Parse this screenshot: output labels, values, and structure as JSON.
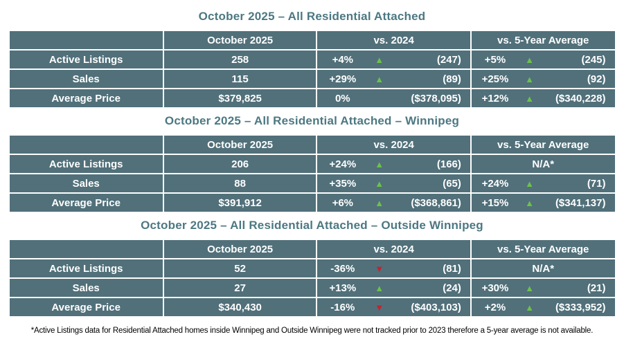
{
  "colors": {
    "cell_background": "#51707A",
    "title_text": "#4C7882",
    "cell_text": "#FFFFFF",
    "up_arrow": "#6CC24A",
    "down_arrow": "#C8202E"
  },
  "icons": {
    "up": "▲",
    "down": "▼"
  },
  "footnote": "*Active Listings data for Residential Attached homes inside Winnipeg and Outside Winnipeg were not tracked prior to 2023 therefore a 5-year average is not available.",
  "chart_data": [
    {
      "type": "table",
      "title": "October 2025 – All Residential Attached",
      "columns": [
        "",
        "October 2025",
        "vs. 2024",
        "vs. 5-Year Average"
      ],
      "rows": [
        {
          "label": "Active Listings",
          "current": "258",
          "vs_2024": {
            "pct": "+4%",
            "dir": "up",
            "ref": "(247)"
          },
          "vs_5yr": {
            "pct": "+5%",
            "dir": "up",
            "ref": "(245)"
          }
        },
        {
          "label": "Sales",
          "current": "115",
          "vs_2024": {
            "pct": "+29%",
            "dir": "up",
            "ref": "(89)"
          },
          "vs_5yr": {
            "pct": "+25%",
            "dir": "up",
            "ref": "(92)"
          }
        },
        {
          "label": "Average Price",
          "current": "$379,825",
          "vs_2024": {
            "pct": "0%",
            "dir": "flat",
            "ref": "($378,095)"
          },
          "vs_5yr": {
            "pct": "+12%",
            "dir": "up",
            "ref": "($340,228)"
          }
        }
      ]
    },
    {
      "type": "table",
      "title": "October 2025 – All Residential Attached – Winnipeg",
      "columns": [
        "",
        "October 2025",
        "vs. 2024",
        "vs. 5-Year Average"
      ],
      "rows": [
        {
          "label": "Active Listings",
          "current": "206",
          "vs_2024": {
            "pct": "+24%",
            "dir": "up",
            "ref": "(166)"
          },
          "vs_5yr": {
            "na": "N/A*"
          }
        },
        {
          "label": "Sales",
          "current": "88",
          "vs_2024": {
            "pct": "+35%",
            "dir": "up",
            "ref": "(65)"
          },
          "vs_5yr": {
            "pct": "+24%",
            "dir": "up",
            "ref": "(71)"
          }
        },
        {
          "label": "Average Price",
          "current": "$391,912",
          "vs_2024": {
            "pct": "+6%",
            "dir": "up",
            "ref": "($368,861)"
          },
          "vs_5yr": {
            "pct": "+15%",
            "dir": "up",
            "ref": "($341,137)"
          }
        }
      ]
    },
    {
      "type": "table",
      "title": "October 2025 – All Residential Attached – Outside Winnipeg",
      "columns": [
        "",
        "October 2025",
        "vs. 2024",
        "vs. 5-Year Average"
      ],
      "rows": [
        {
          "label": "Active Listings",
          "current": "52",
          "vs_2024": {
            "pct": "-36%",
            "dir": "down",
            "ref": "(81)"
          },
          "vs_5yr": {
            "na": "N/A*"
          }
        },
        {
          "label": "Sales",
          "current": "27",
          "vs_2024": {
            "pct": "+13%",
            "dir": "up",
            "ref": "(24)"
          },
          "vs_5yr": {
            "pct": "+30%",
            "dir": "up",
            "ref": "(21)"
          }
        },
        {
          "label": "Average Price",
          "current": "$340,430",
          "vs_2024": {
            "pct": "-16%",
            "dir": "down",
            "ref": "($403,103)"
          },
          "vs_5yr": {
            "pct": "+2%",
            "dir": "up",
            "ref": "($333,952)"
          }
        }
      ]
    }
  ]
}
